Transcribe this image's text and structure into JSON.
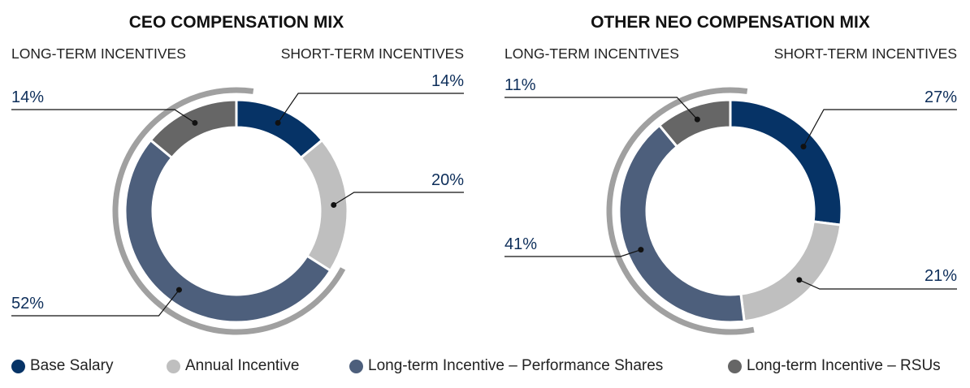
{
  "colors": {
    "base_salary": "#063366",
    "annual_incentive": "#bfbfbf",
    "lti_performance_shares": "#4d5f7c",
    "lti_rsus": "#666666",
    "bracket": "#a0a0a0",
    "label_text": "#0d2e5a",
    "heading_text": "#111111"
  },
  "legend": [
    {
      "label": "Base Salary",
      "color_key": "base_salary"
    },
    {
      "label": "Annual Incentive",
      "color_key": "annual_incentive"
    },
    {
      "label": "Long-term Incentive – Performance Shares",
      "color_key": "lti_performance_shares"
    },
    {
      "label": "Long-term Incentive – RSUs",
      "color_key": "lti_rsus"
    }
  ],
  "chart_data": [
    {
      "type": "pie",
      "title": "CEO COMPENSATION MIX",
      "left_group_label": "LONG-TERM INCENTIVES",
      "right_group_label": "SHORT-TERM INCENTIVES",
      "slices": [
        {
          "name": "Base Salary",
          "value": 14,
          "label": "14%"
        },
        {
          "name": "Annual Incentive",
          "value": 20,
          "label": "20%"
        },
        {
          "name": "Long-term Incentive – Performance Shares",
          "value": 52,
          "label": "52%"
        },
        {
          "name": "Long-term Incentive – RSUs",
          "value": 14,
          "label": "14%"
        }
      ]
    },
    {
      "type": "pie",
      "title": "OTHER NEO COMPENSATION MIX",
      "left_group_label": "LONG-TERM INCENTIVES",
      "right_group_label": "SHORT-TERM INCENTIVES",
      "slices": [
        {
          "name": "Base Salary",
          "value": 27,
          "label": "27%"
        },
        {
          "name": "Annual Incentive",
          "value": 21,
          "label": "21%"
        },
        {
          "name": "Long-term Incentive – Performance Shares",
          "value": 41,
          "label": "41%"
        },
        {
          "name": "Long-term Incentive – RSUs",
          "value": 11,
          "label": "11%"
        }
      ]
    }
  ]
}
